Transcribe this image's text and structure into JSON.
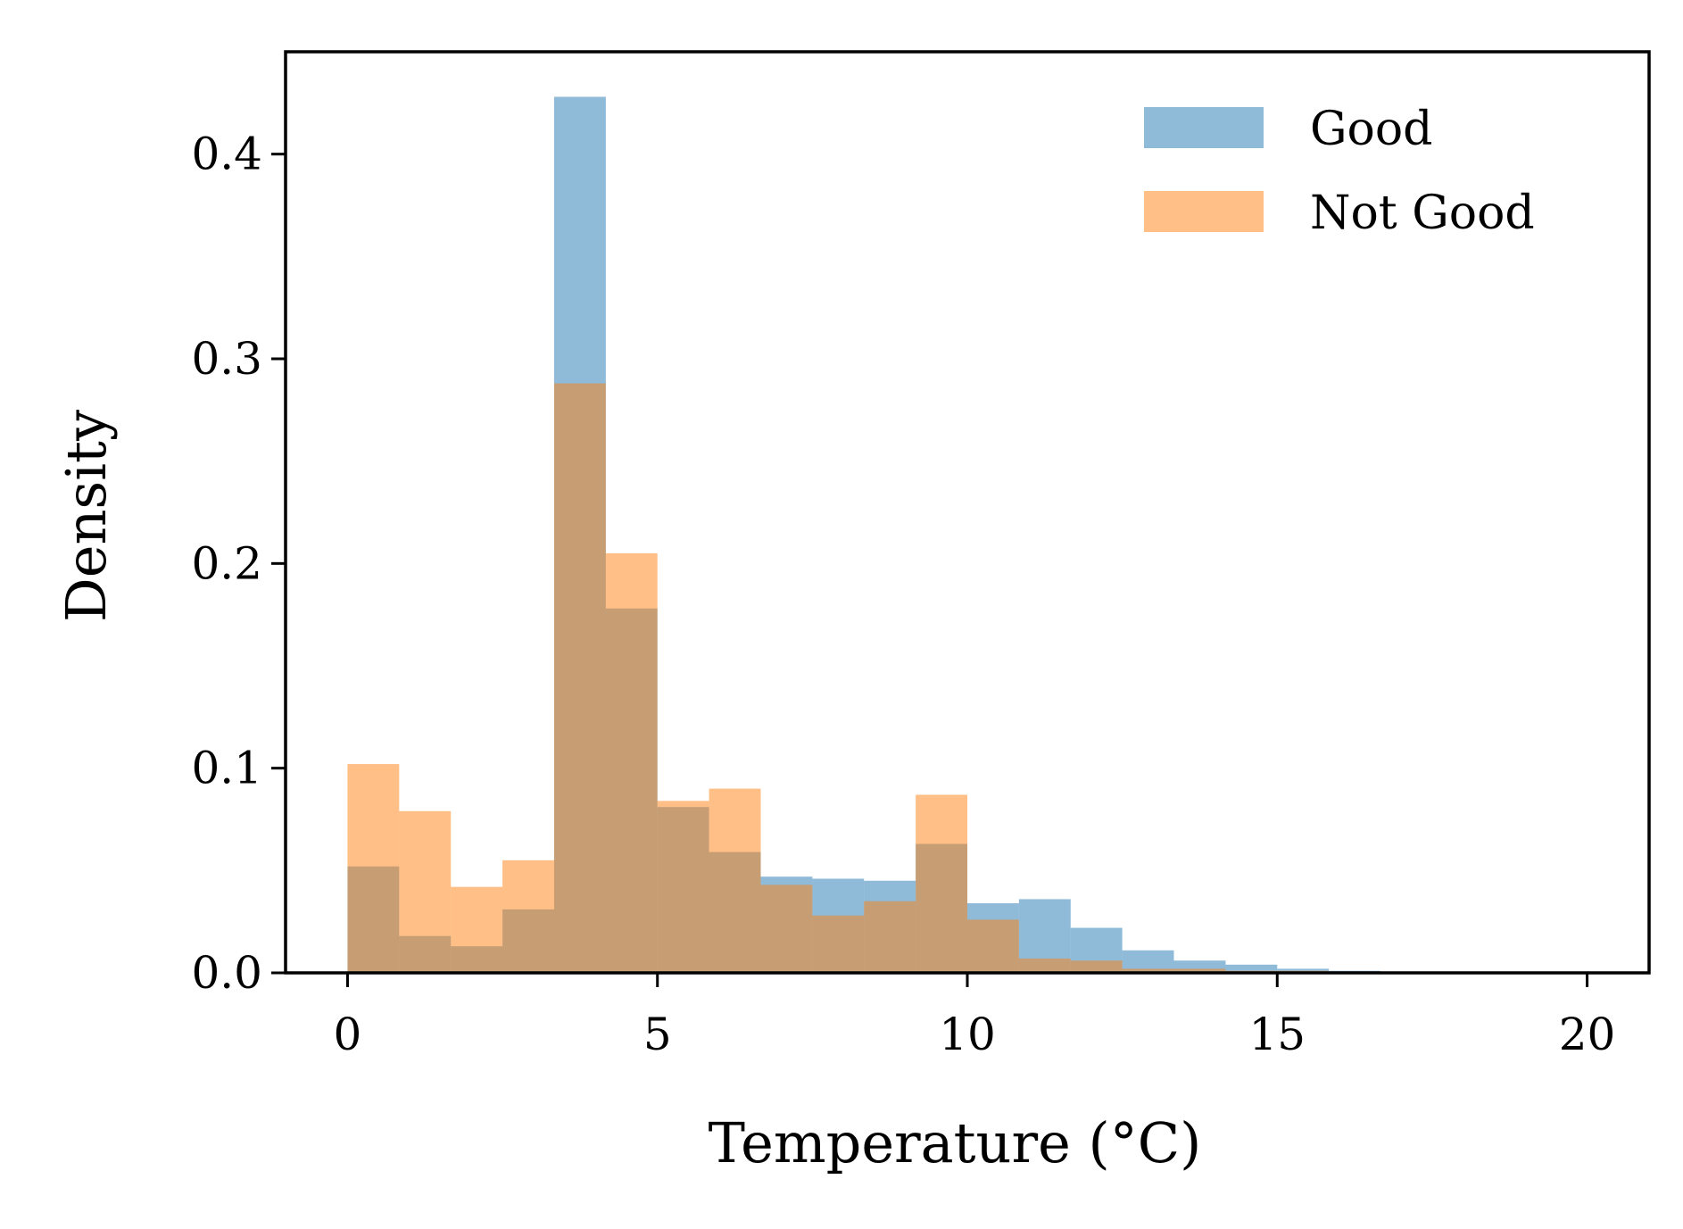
{
  "chart_data": {
    "type": "histogram",
    "xlabel": "Temperature (°C)",
    "ylabel": "Density",
    "xlim": [
      -1,
      21
    ],
    "ylim": [
      0,
      0.45
    ],
    "xticks": [
      0,
      5,
      10,
      15,
      20
    ],
    "yticks": [
      0.0,
      0.1,
      0.2,
      0.3,
      0.4
    ],
    "xtick_labels": [
      "0",
      "5",
      "10",
      "15",
      "20"
    ],
    "ytick_labels": [
      "0.0",
      "0.1",
      "0.2",
      "0.3",
      "0.4"
    ],
    "bin_edges": [
      0,
      0.833,
      1.667,
      2.5,
      3.333,
      4.167,
      5.0,
      5.833,
      6.667,
      7.5,
      8.333,
      9.167,
      10.0,
      10.833,
      11.667,
      12.5,
      13.333,
      14.167,
      15.0,
      15.833,
      16.667,
      17.5,
      18.333,
      19.167,
      20.0
    ],
    "grid": false,
    "legend_position": "top-right",
    "series": [
      {
        "name": "Good",
        "color": "#1f77b4",
        "alpha": 0.5,
        "values": [
          0.052,
          0.018,
          0.013,
          0.031,
          0.428,
          0.178,
          0.081,
          0.059,
          0.047,
          0.046,
          0.045,
          0.063,
          0.034,
          0.036,
          0.022,
          0.011,
          0.006,
          0.004,
          0.002,
          0.001,
          0,
          0,
          0,
          0
        ]
      },
      {
        "name": "Not Good",
        "color": "#ff7f0e",
        "alpha": 0.5,
        "values": [
          0.102,
          0.079,
          0.042,
          0.055,
          0.288,
          0.205,
          0.084,
          0.09,
          0.043,
          0.028,
          0.035,
          0.087,
          0.026,
          0.007,
          0.006,
          0.002,
          0.002,
          0.001,
          0.001,
          0,
          0,
          0,
          0,
          0
        ]
      }
    ]
  }
}
